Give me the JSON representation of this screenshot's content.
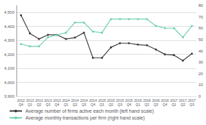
{
  "chart_data": {
    "type": "line",
    "categories": [
      "2012\nQ4",
      "2013\nQ1",
      "2013\nQ2",
      "2013\nQ3",
      "2013\nQ4",
      "2014\nQ1",
      "2014\nQ2",
      "2014\nQ3",
      "2014\nQ4",
      "2015\nQ1",
      "2015\nQ2",
      "2015\nQ3",
      "2015\nQ4",
      "2016\nQ1",
      "2016\nQ2",
      "2016\nQ3",
      "2016\nQ4",
      "2017\nQ1",
      "2017\nQ2",
      "2017\nQ3"
    ],
    "series": [
      {
        "name": "Average number of firms active each month (left hand scale)",
        "color": "#3a3a3a",
        "marker": "circle",
        "values": [
          4480,
          4350,
          4310,
          4340,
          4340,
          4310,
          4320,
          4355,
          4175,
          4175,
          4250,
          4280,
          4280,
          4270,
          4265,
          4235,
          4200,
          4195,
          4155,
          4205
        ]
      },
      {
        "name": "Average monthly transactions per firm (right hand scale)",
        "color": "#6dcfb0",
        "marker": "circle",
        "axis": "y2",
        "values": [
          46,
          44,
          44,
          52,
          54,
          56,
          65,
          65,
          57,
          56,
          68,
          68,
          68,
          68,
          68,
          62,
          60,
          60,
          52,
          62
        ]
      }
    ],
    "ylim": [
      3900,
      4550
    ],
    "yticks": [
      {
        "value": 3900,
        "label": "3,900"
      },
      {
        "value": 4000,
        "label": "4,000"
      },
      {
        "value": 4100,
        "label": "4,100"
      },
      {
        "value": 4200,
        "label": "4,200"
      },
      {
        "value": 4300,
        "label": "4,300"
      },
      {
        "value": 4400,
        "label": "4,400"
      },
      {
        "value": 4500,
        "label": "4,500"
      }
    ],
    "y2lim": [
      0,
      80
    ],
    "y2ticks": [
      0,
      10,
      20,
      30,
      40,
      50,
      60,
      70,
      80
    ],
    "grid": true,
    "legend": "lower left"
  }
}
